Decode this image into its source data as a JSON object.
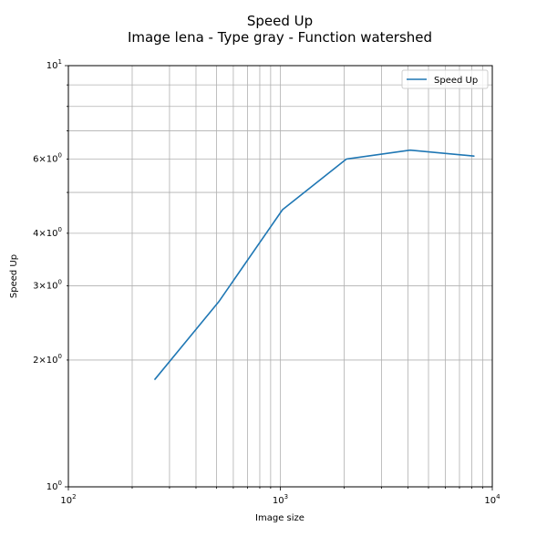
{
  "chart_data": {
    "type": "line",
    "title": "Speed Up",
    "subtitle": "Image lena - Type gray - Function watershed",
    "xlabel": "Image size",
    "ylabel": "Speed Up",
    "xscale": "log",
    "yscale": "log",
    "xlim": [
      100,
      10000
    ],
    "ylim": [
      1,
      10
    ],
    "grid": "on",
    "legend_placement": "top-right",
    "x_ticks": [
      {
        "value": 100,
        "base": "10",
        "exp": "2"
      },
      {
        "value": 1000,
        "base": "10",
        "exp": "3"
      },
      {
        "value": 10000,
        "base": "10",
        "exp": "4"
      }
    ],
    "y_ticks": [
      {
        "value": 1,
        "base": "10",
        "exp": "0"
      },
      {
        "value": 2,
        "base": "2×10",
        "exp": "0"
      },
      {
        "value": 3,
        "base": "3×10",
        "exp": "0"
      },
      {
        "value": 4,
        "base": "4×10",
        "exp": "0"
      },
      {
        "value": 6,
        "base": "6×10",
        "exp": "0"
      },
      {
        "value": 10,
        "base": "10",
        "exp": "1"
      }
    ],
    "series": [
      {
        "name": "Speed Up",
        "color": "#1f77b4",
        "x": [
          256,
          512,
          1024,
          2048,
          4096,
          8192
        ],
        "y": [
          1.8,
          2.75,
          4.55,
          6.0,
          6.3,
          6.1
        ]
      }
    ]
  }
}
